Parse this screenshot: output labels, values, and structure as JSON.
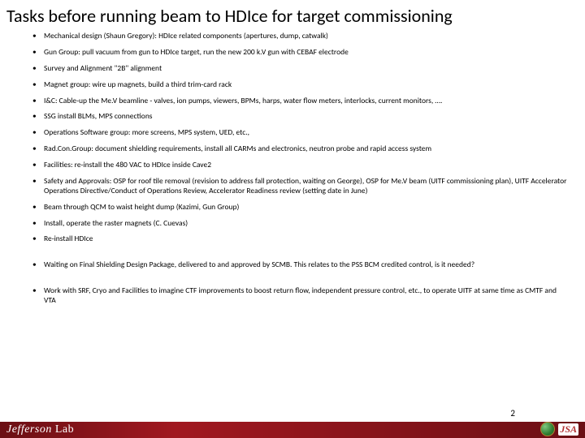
{
  "title": "Tasks before running beam to HDIce for target commissioning",
  "bullets": [
    "Mechanical design (Shaun Gregory): HDIce related components (apertures, dump, catwalk)",
    "Gun Group: pull vacuum from gun to HDIce target, run the new 200 k.V gun with CEBAF electrode",
    "Survey and Alignment \"2B\" alignment",
    "Magnet group: wire up magnets, build a third trim-card rack",
    "I&C: Cable-up the Me.V beamline - valves, ion pumps, viewers, BPMs, harps, water flow meters, interlocks, current monitors, ….",
    "SSG install BLMs, MPS connections",
    "Operations Software group: more screens, MPS system, UED, etc.,",
    "Rad.Con.Group: document shielding requirements, install all CARMs and electronics, neutron probe and rapid access system",
    "Facilities: re-install the 480 VAC to HDIce inside Cave2",
    "Safety and Approvals: OSP for roof tile removal (revision to address fall protection, waiting on George), OSP for Me.V beam (UITF commissioning plan), UITF Accelerator Operations Directive/Conduct of Operations Review, Accelerator Readiness review (setting date in June)",
    "Beam through QCM to waist height dump (Kazimi, Gun Group)",
    "Install, operate the raster magnets (C. Cuevas)",
    "Re-install HDIce",
    "Waiting on Final Shielding Design Package, delivered to and approved by SCMB. This relates to the PSS BCM credited control, is it needed?",
    "Work with SRF, Cryo and Facilities to imagine CTF improvements to boost return flow, independent pressure control, etc., to operate UITF at same time as CMTF and VTA"
  ],
  "page_number": "2",
  "footer_left": "Jefferson Lab",
  "footer_right": "JSA",
  "colors": {
    "background": "#ffffff",
    "text": "#000000",
    "footer_bar": "#6b0f14",
    "jsa": "#b23030"
  }
}
